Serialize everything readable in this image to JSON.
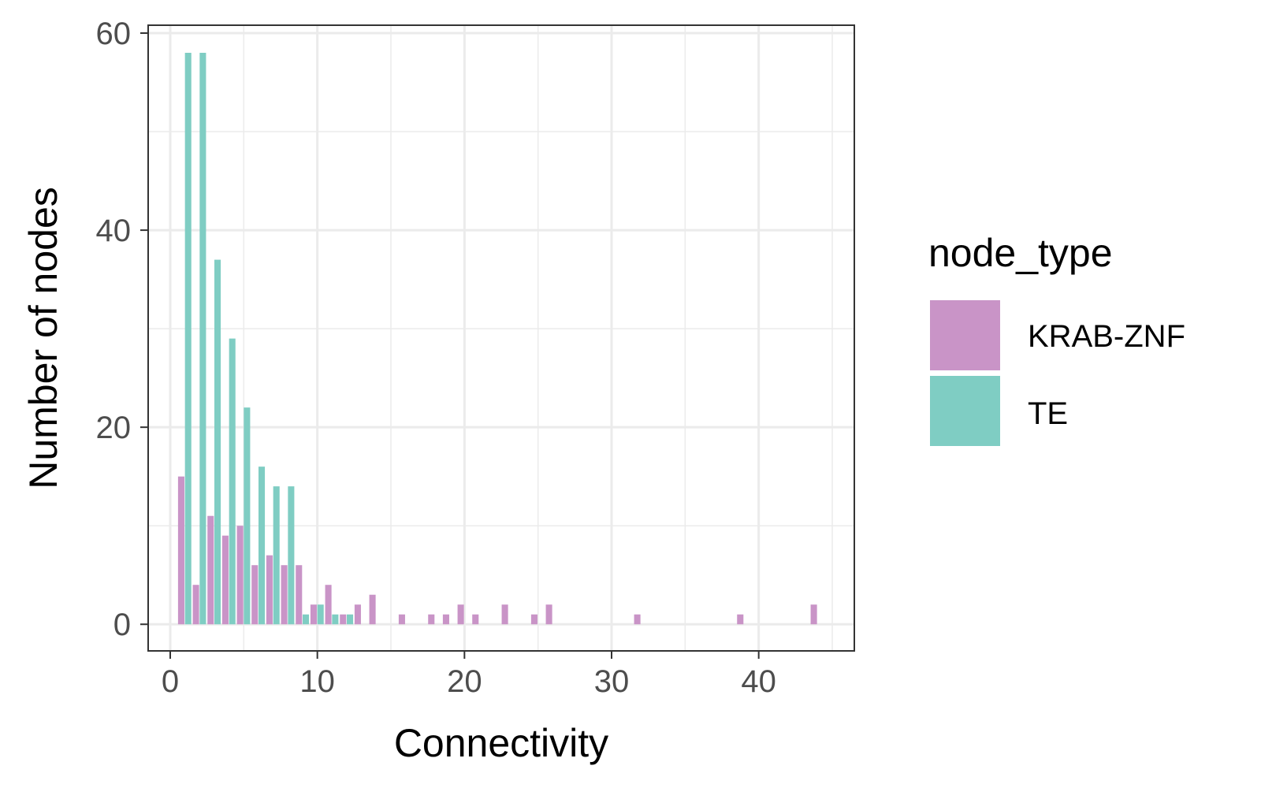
{
  "chart_data": {
    "type": "bar",
    "title": "",
    "xlabel": "Connectivity",
    "ylabel": "Number of nodes",
    "xlim": [
      -1.5,
      46.5
    ],
    "ylim": [
      -2.7,
      60.8
    ],
    "xticks": [
      0,
      10,
      20,
      30,
      40
    ],
    "xtick_labels": [
      "0",
      "10",
      "20",
      "30",
      "40"
    ],
    "yticks": [
      0,
      20,
      40,
      60
    ],
    "ytick_labels": [
      "0",
      "20",
      "40",
      "60"
    ],
    "grid": true,
    "legend": {
      "title": "node_type",
      "position": "right"
    },
    "series": [
      {
        "name": "KRAB-ZNF",
        "color": "#c994c7",
        "points": [
          {
            "x": 1,
            "y": 15
          },
          {
            "x": 2,
            "y": 4
          },
          {
            "x": 3,
            "y": 11
          },
          {
            "x": 4,
            "y": 9
          },
          {
            "x": 5,
            "y": 10
          },
          {
            "x": 6,
            "y": 6
          },
          {
            "x": 7,
            "y": 7
          },
          {
            "x": 8,
            "y": 6
          },
          {
            "x": 9,
            "y": 6
          },
          {
            "x": 10,
            "y": 2
          },
          {
            "x": 11,
            "y": 4
          },
          {
            "x": 12,
            "y": 1
          },
          {
            "x": 13,
            "y": 2
          },
          {
            "x": 14,
            "y": 3
          },
          {
            "x": 16,
            "y": 1
          },
          {
            "x": 18,
            "y": 1
          },
          {
            "x": 19,
            "y": 1
          },
          {
            "x": 20,
            "y": 2
          },
          {
            "x": 21,
            "y": 1
          },
          {
            "x": 23,
            "y": 2
          },
          {
            "x": 25,
            "y": 1
          },
          {
            "x": 26,
            "y": 2
          },
          {
            "x": 32,
            "y": 1
          },
          {
            "x": 39,
            "y": 1
          },
          {
            "x": 44,
            "y": 2
          }
        ]
      },
      {
        "name": "TE",
        "color": "#7fcdc3",
        "points": [
          {
            "x": 1,
            "y": 58
          },
          {
            "x": 2,
            "y": 58
          },
          {
            "x": 3,
            "y": 37
          },
          {
            "x": 4,
            "y": 29
          },
          {
            "x": 5,
            "y": 22
          },
          {
            "x": 6,
            "y": 16
          },
          {
            "x": 7,
            "y": 14
          },
          {
            "x": 8,
            "y": 14
          },
          {
            "x": 9,
            "y": 1
          },
          {
            "x": 10,
            "y": 2
          },
          {
            "x": 11,
            "y": 1
          },
          {
            "x": 12,
            "y": 1
          }
        ]
      }
    ]
  }
}
